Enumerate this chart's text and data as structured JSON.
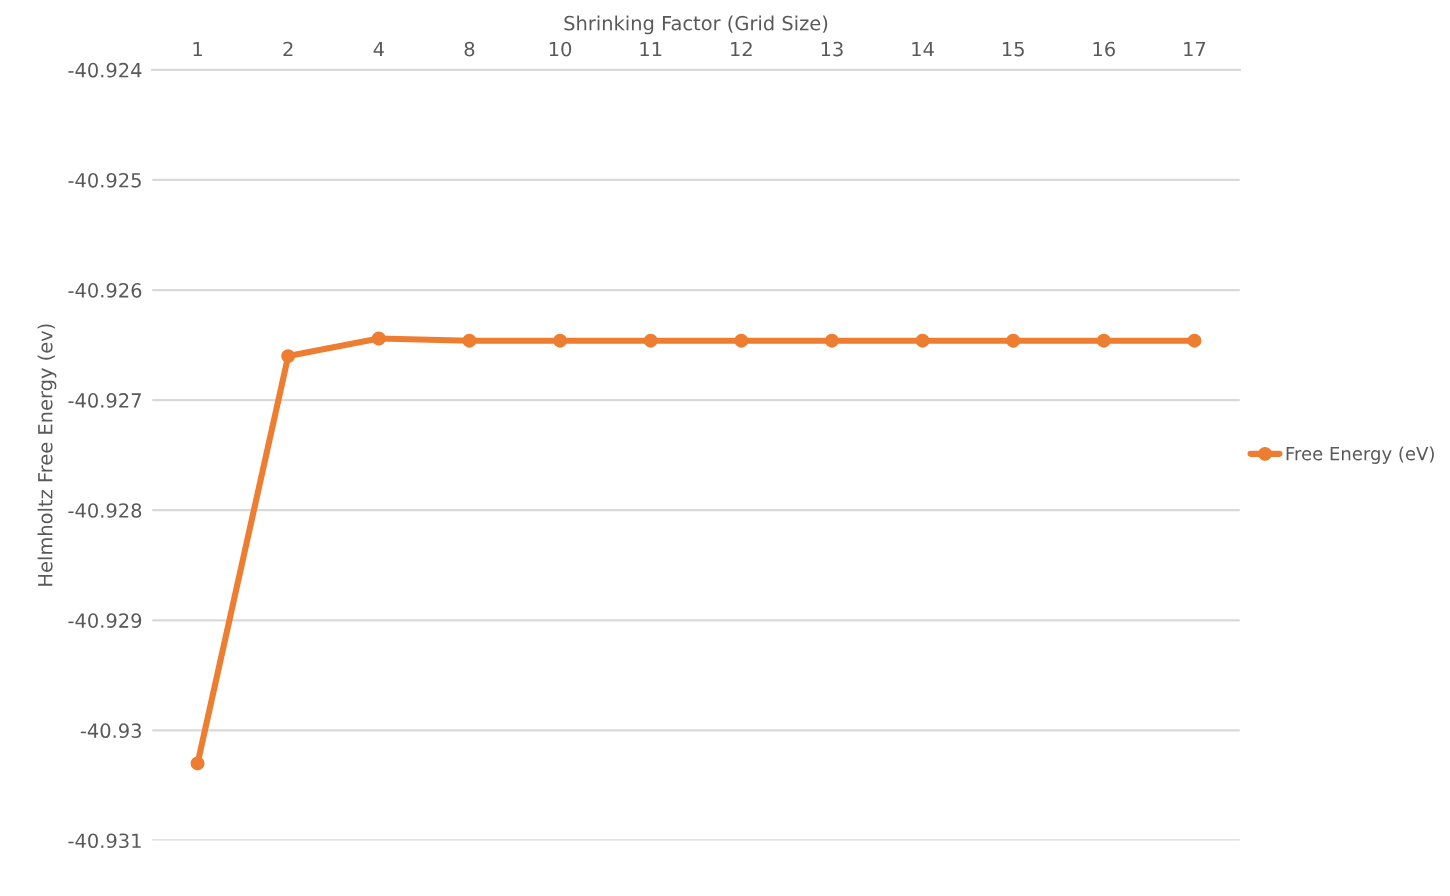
{
  "chart_data": {
    "type": "line",
    "xlabel": "Shrinking Factor (Grid Size)",
    "ylabel": "Helmholtz Free Energy (ev)",
    "categories": [
      "1",
      "2",
      "4",
      "8",
      "10",
      "11",
      "12",
      "13",
      "14",
      "15",
      "16",
      "17"
    ],
    "series": [
      {
        "name": "Free Energy (eV)",
        "color": "#ed7d31",
        "values": [
          -40.9303,
          -40.9266,
          -40.92644,
          -40.92646,
          -40.92646,
          -40.92646,
          -40.92646,
          -40.92646,
          -40.92646,
          -40.92646,
          -40.92646,
          -40.92646
        ]
      }
    ],
    "ylim": [
      -40.931,
      -40.924
    ],
    "yticks": [
      -40.924,
      -40.925,
      -40.926,
      -40.927,
      -40.928,
      -40.929,
      {
        "value": -40.93,
        "label": "-40.93"
      },
      -40.931
    ],
    "grid": "y",
    "legend": "right",
    "marker": "circle",
    "line_style": "solid"
  }
}
